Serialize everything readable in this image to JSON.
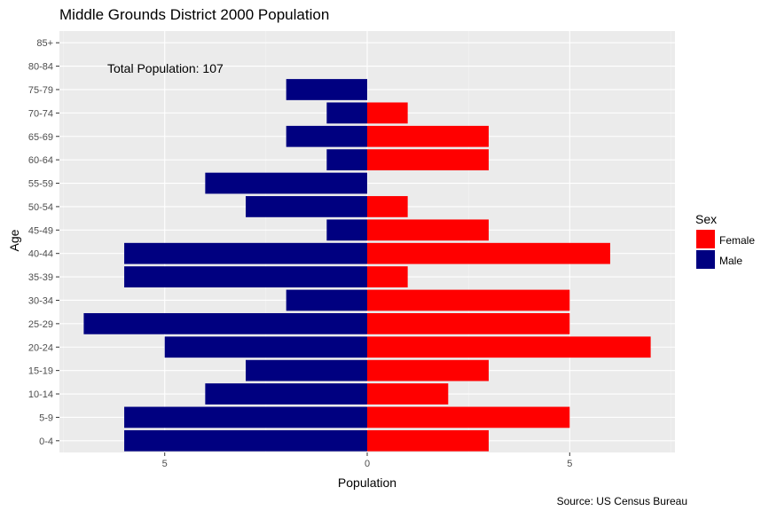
{
  "chart_data": {
    "type": "bar",
    "orientation": "horizontal",
    "title": "Middle Grounds District 2000 Population",
    "xlabel": "Population",
    "ylabel": "Age",
    "caption": "Source: US Census Bureau",
    "annotation": "Total Population: 107",
    "legend_title": "Sex",
    "legend_position": "right",
    "grid": true,
    "xlim": [
      -7.6,
      7.6
    ],
    "x_ticks": [
      -5,
      0,
      5
    ],
    "x_tick_labels": [
      "5",
      "0",
      "5"
    ],
    "categories": [
      "0-4",
      "5-9",
      "10-14",
      "15-19",
      "20-24",
      "25-29",
      "30-34",
      "35-39",
      "40-44",
      "45-49",
      "50-54",
      "55-59",
      "60-64",
      "65-69",
      "70-74",
      "75-79",
      "80-84",
      "85+"
    ],
    "series": [
      {
        "name": "Female",
        "color": "#ff0000",
        "values": [
          3,
          5,
          2,
          3,
          7,
          5,
          5,
          1,
          6,
          3,
          1,
          0,
          3,
          3,
          1,
          0,
          0,
          0
        ]
      },
      {
        "name": "Male",
        "color": "#000080",
        "values": [
          6,
          6,
          4,
          3,
          5,
          7,
          2,
          6,
          6,
          1,
          3,
          4,
          1,
          2,
          1,
          2,
          0,
          0
        ]
      }
    ]
  }
}
